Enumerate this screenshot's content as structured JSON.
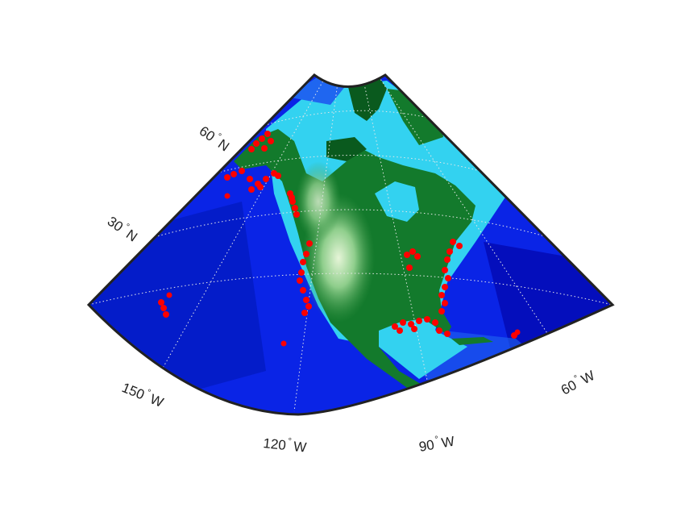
{
  "map": {
    "projection": "conic",
    "frame_color": "#222222",
    "graticule_color": "#e8e8e8",
    "marker_color": "#ff0000",
    "ocean_colors": [
      "#0000a0",
      "#0a24e6",
      "#1f66f0",
      "#33d2f0"
    ],
    "land_colors": [
      "#0a5a1e",
      "#137a2c",
      "#3f9a4a",
      "#8fce8c",
      "#e6f5d8"
    ],
    "lat_labels": [
      {
        "value": "60",
        "hemisphere": "N"
      },
      {
        "value": "30",
        "hemisphere": "N"
      }
    ],
    "lon_labels": [
      {
        "value": "150",
        "hemisphere": "W"
      },
      {
        "value": "120",
        "hemisphere": "W"
      },
      {
        "value": "90",
        "hemisphere": "W"
      },
      {
        "value": "60",
        "hemisphere": "W"
      }
    ],
    "degree_symbol": "°",
    "marker_groups": [
      "alaska-coast",
      "pacific-northwest-coast",
      "california-coast",
      "hawaii",
      "pacific-offshore",
      "great-lakes",
      "atlantic-coast",
      "gulf-coast",
      "florida",
      "caribbean"
    ]
  }
}
